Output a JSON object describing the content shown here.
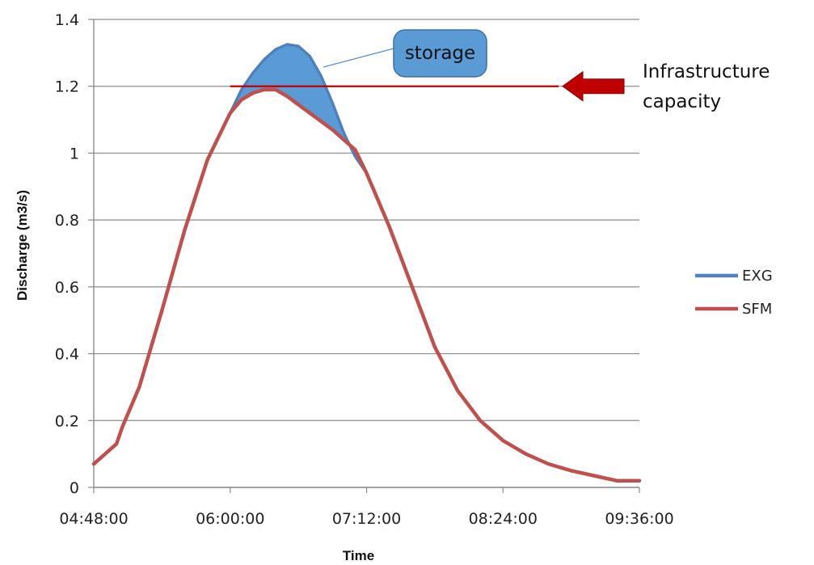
{
  "chart_data": {
    "type": "line",
    "xlabel": "Time",
    "ylabel": "Discharge  (m3/s)",
    "x_ticks": [
      "04:48:00",
      "06:00:00",
      "07:12:00",
      "08:24:00",
      "09:36:00"
    ],
    "y_ticks": [
      "0",
      "0.2",
      "0.4",
      "0.6",
      "0.8",
      "1",
      "1.2",
      "1.4"
    ],
    "xlim": [
      "04:48:00",
      "09:36:00"
    ],
    "ylim": [
      0,
      1.4
    ],
    "grid": "horizontal",
    "legend_position": "right",
    "series": [
      {
        "name": "EXG",
        "color": "#4F81BD",
        "points": [
          [
            "06:00:00",
            1.12
          ],
          [
            "06:06:00",
            1.19
          ],
          [
            "06:12:00",
            1.24
          ],
          [
            "06:18:00",
            1.28
          ],
          [
            "06:24:00",
            1.31
          ],
          [
            "06:30:00",
            1.325
          ],
          [
            "06:36:00",
            1.32
          ],
          [
            "06:42:00",
            1.29
          ],
          [
            "06:48:00",
            1.23
          ],
          [
            "06:54:00",
            1.15
          ],
          [
            "07:00:00",
            1.06
          ],
          [
            "07:06:00",
            0.99
          ],
          [
            "07:12:00",
            0.94
          ]
        ]
      },
      {
        "name": "SFM",
        "color": "#C0504D",
        "points": [
          [
            "04:48:00",
            0.07
          ],
          [
            "04:54:00",
            0.1
          ],
          [
            "05:00:00",
            0.13
          ],
          [
            "05:03:00",
            0.18
          ],
          [
            "05:12:00",
            0.3
          ],
          [
            "05:24:00",
            0.53
          ],
          [
            "05:36:00",
            0.77
          ],
          [
            "05:48:00",
            0.98
          ],
          [
            "06:00:00",
            1.12
          ],
          [
            "06:06:00",
            1.16
          ],
          [
            "06:12:00",
            1.18
          ],
          [
            "06:18:00",
            1.19
          ],
          [
            "06:24:00",
            1.19
          ],
          [
            "06:30:00",
            1.17
          ],
          [
            "06:42:00",
            1.12
          ],
          [
            "06:54:00",
            1.07
          ],
          [
            "07:06:00",
            1.01
          ],
          [
            "07:12:00",
            0.94
          ],
          [
            "07:24:00",
            0.78
          ],
          [
            "07:36:00",
            0.6
          ],
          [
            "07:48:00",
            0.42
          ],
          [
            "08:00:00",
            0.29
          ],
          [
            "08:12:00",
            0.2
          ],
          [
            "08:24:00",
            0.14
          ],
          [
            "08:36:00",
            0.1
          ],
          [
            "08:48:00",
            0.07
          ],
          [
            "09:00:00",
            0.05
          ],
          [
            "09:12:00",
            0.035
          ],
          [
            "09:24:00",
            0.02
          ],
          [
            "09:36:00",
            0.02
          ]
        ]
      }
    ],
    "capacity_line": {
      "value": 1.2,
      "x_start": "06:00:00",
      "x_end": "09:36:00",
      "color": "#C00000",
      "label": "Infrastructure capacity",
      "label_lines": [
        "Infrastructure",
        "capacity"
      ]
    },
    "storage_annotation": {
      "label": "storage",
      "fill": "#5B9BD5",
      "stroke": "#41719C"
    }
  }
}
